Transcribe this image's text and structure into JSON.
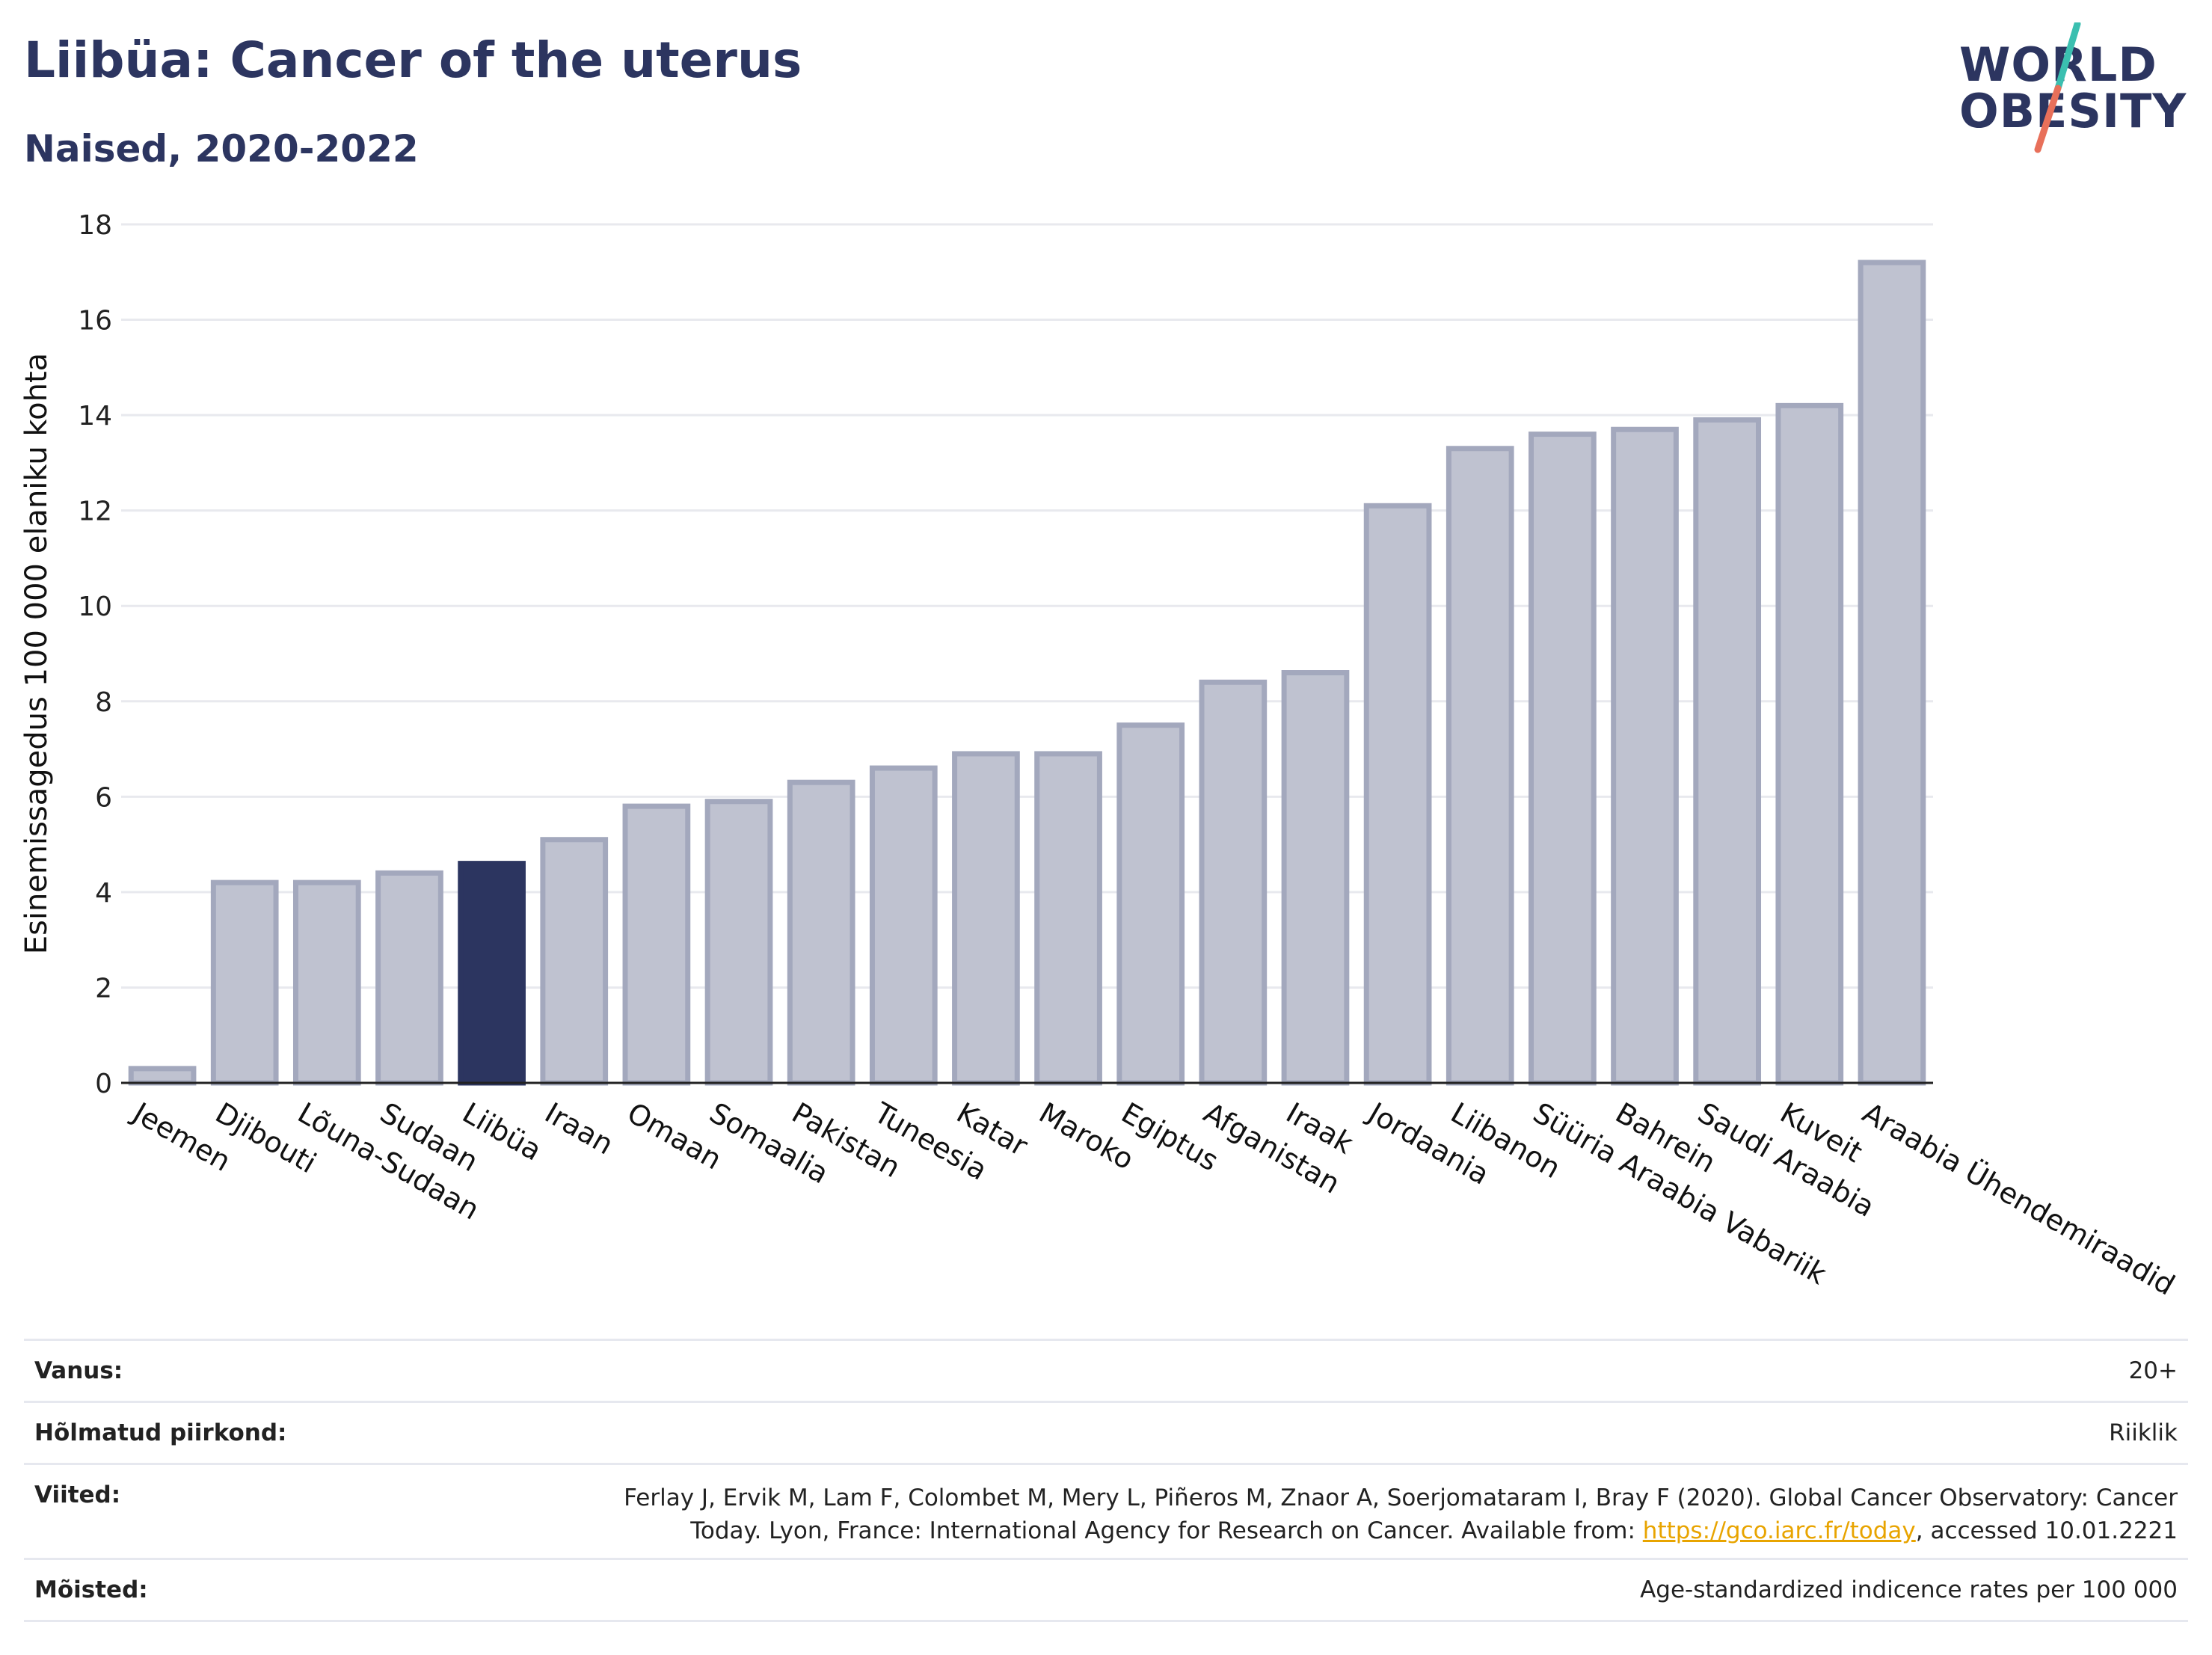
{
  "header": {
    "title": "Liibüa: Cancer of the uterus",
    "subtitle": "Naised, 2020-2022"
  },
  "logo": {
    "line1": "WORLD",
    "line2": "OBESITY",
    "colors": {
      "text": "#2c3560",
      "slash_top": "#3bbfb0",
      "slash_bottom": "#e8705a"
    }
  },
  "colors": {
    "bar_default": "#bfc2d0",
    "bar_default_border": "#a3a8bd",
    "bar_highlight": "#2c3560",
    "grid": "#e8e9ee",
    "axis": "#222222"
  },
  "chart_data": {
    "type": "bar",
    "ylabel": "Esinemissagedus 100 000 elaniku kohta",
    "ylim": [
      0,
      18
    ],
    "yticks": [
      0,
      2,
      4,
      6,
      8,
      10,
      12,
      14,
      16,
      18
    ],
    "grid": true,
    "highlight": "Liibüa",
    "categories": [
      "Jeemen",
      "Djibouti",
      "Lõuna-Sudaan",
      "Sudaan",
      "Liibüa",
      "Iraan",
      "Omaan",
      "Somaalia",
      "Pakistan",
      "Tuneesia",
      "Katar",
      "Maroko",
      "Egiptus",
      "Afganistan",
      "Iraak",
      "Jordaania",
      "Liibanon",
      "Süüria Araabia Vabariik",
      "Bahrein",
      "Saudi Araabia",
      "Kuveit",
      "Araabia Ühendemiraadid"
    ],
    "values": [
      0.3,
      4.2,
      4.2,
      4.4,
      4.6,
      5.1,
      5.8,
      5.9,
      6.3,
      6.6,
      6.9,
      6.9,
      7.5,
      8.4,
      8.6,
      12.1,
      13.3,
      13.6,
      13.7,
      13.9,
      14.2,
      17.2
    ]
  },
  "meta": {
    "age_label": "Vanus:",
    "age_value": "20+",
    "region_label": "Hõlmatud piirkond:",
    "region_value": "Riiklik",
    "refs_label": "Viited:",
    "refs_line1": "Ferlay J, Ervik M, Lam F, Colombet M, Mery L, Piñeros M, Znaor A, Soerjomataram I, Bray F (2020). Global Cancer Observatory: Cancer",
    "refs_line2_a": "Today. Lyon, France: International Agency for Research on Cancer. Available from: ",
    "refs_link": "https://gco.iarc.fr/today",
    "refs_line2_b": ", accessed 10.01.2221",
    "defs_label": "Mõisted:",
    "defs_value": "Age-standardized indicence rates per 100 000"
  }
}
